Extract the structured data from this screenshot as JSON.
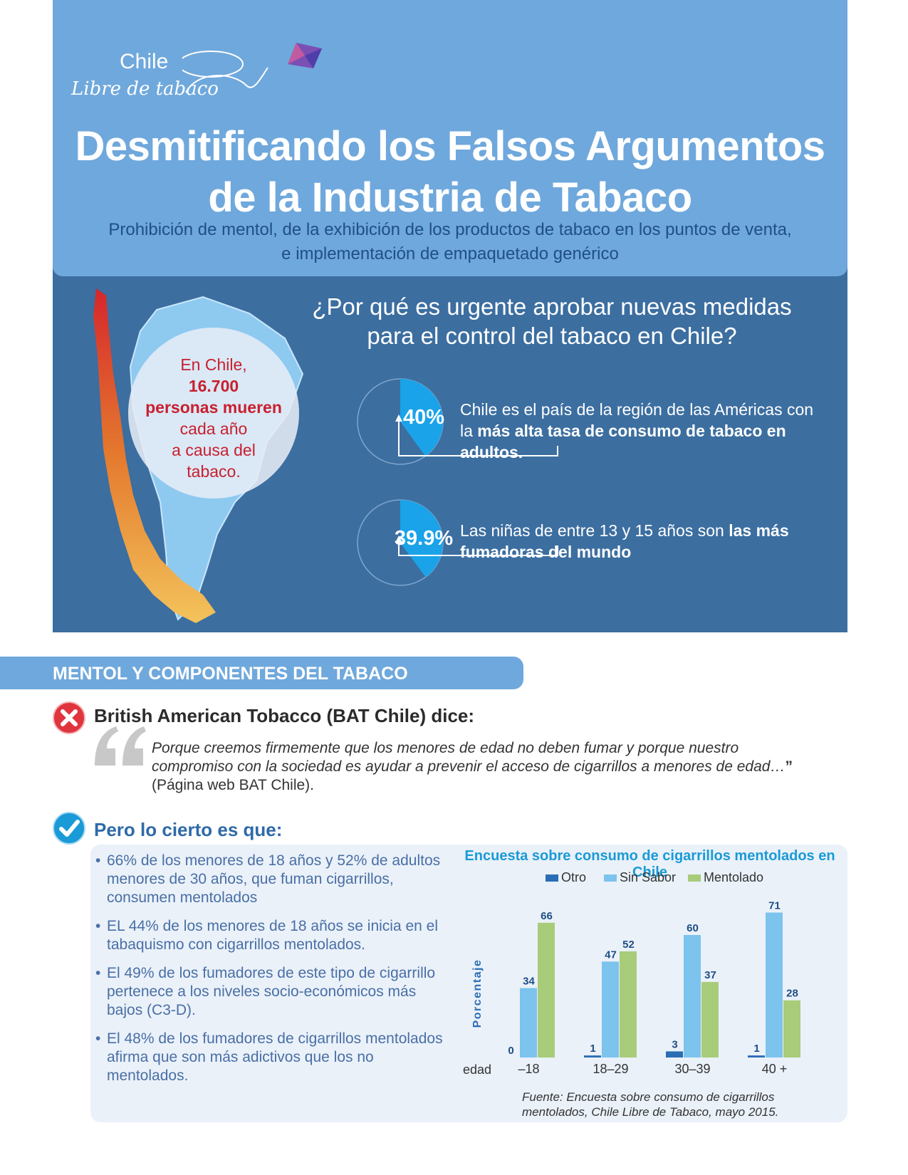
{
  "header": {
    "logo_line1": "Chile",
    "logo_line2": "Libre de tabaco",
    "title_line1": "Desmitificando los Falsos Argumentos",
    "title_line2": "de la Industria de Tabaco",
    "subtitle_line1": "Prohibición de mentol, de la exhibición de los productos de tabaco en los puntos de venta,",
    "subtitle_line2": "e implementación de empaquetado genérico"
  },
  "urgent": {
    "question_line1": "¿Por qué es urgente aprobar nuevas medidas",
    "question_line2": "para el control del tabaco en Chile?",
    "map_text_1": "En Chile,",
    "map_text_2": "16.700",
    "map_text_3": "personas mueren",
    "map_text_4": "cada año",
    "map_text_5": "a causa del",
    "map_text_6": "tabaco.",
    "stats": [
      {
        "value": 0.4,
        "label": "40%",
        "text_plain": "Chile es el país de la región de las Américas con la ",
        "text_bold": "más alta tasa de consumo de tabaco en adultos."
      },
      {
        "value": 0.399,
        "label": "39.9%",
        "text_plain": "Las niñas de entre 13 y 15 años son ",
        "text_bold": "las más fumadoras del mundo"
      }
    ]
  },
  "mentol": {
    "section_title": "MENTOL Y COMPONENTES DEL TABACO",
    "bat_heading": "British American Tobacco (BAT Chile) dice:",
    "quote_italic": "Porque creemos firmemente que los menores de edad no deben fumar y porque nuestro compromiso con la sociedad es ayudar a prevenir el acceso de cigarrillos a menores de edad…",
    "quote_close": "”",
    "quote_source": " (Página web BAT Chile).",
    "truth_heading": "Pero lo cierto es que:",
    "facts": [
      "66% de los menores de 18 años y 52% de adultos menores de 30 años, que fuman cigarrillos, consumen mentolados",
      "EL 44% de los menores de 18 años se inicia en el tabaquismo con cigarrillos mentolados.",
      "El 49% de los fumadores de este tipo de cigarrillo pertenece a los niveles socio-económicos más bajos (C3-D).",
      "El 48% de los fumadores de cigarrillos mentolados afirma que son más adictivos que los no mentolados."
    ]
  },
  "chart_data": {
    "type": "bar",
    "title": "Encuesta sobre consumo de cigarrillos mentolados en Chile",
    "ylabel": "Porcentaje",
    "xlabel": "edad",
    "categories": [
      "–18",
      "18–29",
      "30–39",
      "40 +"
    ],
    "series": [
      {
        "name": "Otro",
        "color": "#2a6db5",
        "values": [
          0,
          1,
          3,
          1
        ]
      },
      {
        "name": "Sin Sabor",
        "color": "#7cc3ee",
        "values": [
          34,
          47,
          60,
          71
        ]
      },
      {
        "name": "Mentolado",
        "color": "#a8cc7a",
        "values": [
          66,
          52,
          37,
          28
        ]
      }
    ],
    "ylim": [
      0,
      75
    ],
    "legend": "top",
    "grid": false,
    "source": "Fuente: Encuesta sobre consumo de cigarrillos mentolados, Chile Libre de Tabaco, mayo 2015."
  },
  "colors": {
    "header_bg": "#6fa8dc",
    "section_bg": "#3c6ea0",
    "highlight_red": "#c8202f",
    "accent_blue": "#1a9ad6"
  }
}
